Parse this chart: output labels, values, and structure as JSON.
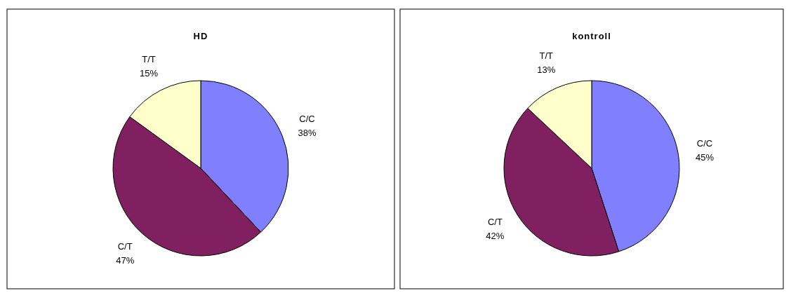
{
  "chart_data": [
    {
      "type": "pie",
      "title": "HD",
      "categories": [
        "C/C",
        "C/T",
        "T/T"
      ],
      "values": [
        38,
        47,
        15
      ],
      "value_labels": [
        "38%",
        "47%",
        "15%"
      ],
      "colors": [
        "#8080ff",
        "#802060",
        "#ffffcc"
      ]
    },
    {
      "type": "pie",
      "title": "kontroll",
      "categories": [
        "C/C",
        "C/T",
        "T/T"
      ],
      "values": [
        45,
        42,
        13
      ],
      "value_labels": [
        "45%",
        "42%",
        "13%"
      ],
      "colors": [
        "#8080ff",
        "#802060",
        "#ffffcc"
      ]
    }
  ]
}
